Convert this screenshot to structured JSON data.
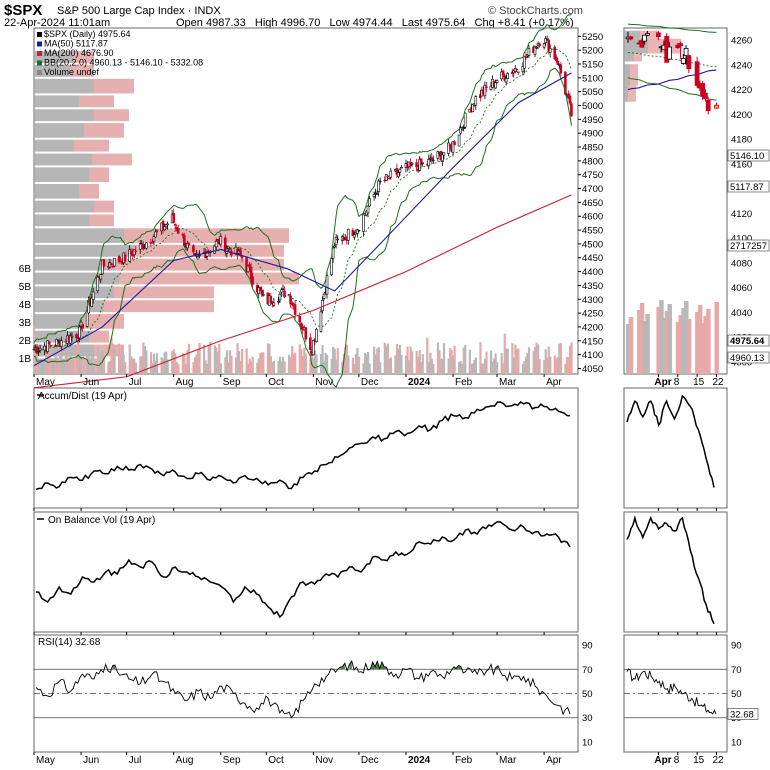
{
  "header": {
    "symbol": "$SPX",
    "description": "S&P 500 Large Cap Index",
    "exchange": "INDX",
    "date_time": "22-Apr-2024 11:01am",
    "open_label": "Open",
    "open": "4987.33",
    "high_label": "High",
    "high": "4996.70",
    "low_label": "Low",
    "low": "4974.44",
    "last_label": "Last",
    "last": "4975.64",
    "chg_label": "Chg",
    "chg": "+8.41 (+0.17%)",
    "brand": "© StockCharts.com"
  },
  "colors": {
    "candle_up": "#000000",
    "candle_down": "#cc0022",
    "ma50": "#1a1aa0",
    "ma200": "#cc1f2f",
    "bb": "#1f6e1f",
    "volume_up": "#b8b8b8",
    "volume_down": "#e8a8a8",
    "vbp_up": "#a9a9a9",
    "vbp_down": "#e3a2a2",
    "rsi_fill": "#4f7a4f",
    "accent": "#e0c800"
  },
  "chart_data": [
    {
      "type": "candlestick",
      "legend": [
        {
          "name": "$SPX (Daily) 4975.64",
          "color": "#000000"
        },
        {
          "name": "MA(50) 5117.87",
          "color": "#1a1aa0"
        },
        {
          "name": "MA(200) 4676.90",
          "color": "#cc1f2f"
        },
        {
          "name": "BB(20,2.0) 4960.13 - 5146.10 - 5332.08",
          "color": "#1f6e1f"
        },
        {
          "name": "Volume undef",
          "color": "#888888"
        }
      ],
      "legend_position": "top-left",
      "ylim": [
        4030,
        5280
      ],
      "y_ticks": [
        4050,
        4100,
        4150,
        4200,
        4250,
        4300,
        4350,
        4400,
        4450,
        4500,
        4550,
        4600,
        4650,
        4700,
        4750,
        4800,
        4850,
        4900,
        4950,
        5000,
        5050,
        5100,
        5150,
        5200,
        5250
      ],
      "volume_ticks": [
        "1B",
        "2B",
        "3B",
        "4B",
        "5B",
        "6B"
      ],
      "x_ticks": [
        {
          "label": "May",
          "date": "2023-05-01"
        },
        {
          "label": "Jun",
          "date": "2023-06-01"
        },
        {
          "label": "Jul",
          "date": "2023-07-01"
        },
        {
          "label": "Aug",
          "date": "2023-08-01"
        },
        {
          "label": "Sep",
          "date": "2023-09-01"
        },
        {
          "label": "Oct",
          "date": "2023-10-01"
        },
        {
          "label": "Nov",
          "date": "2023-11-01"
        },
        {
          "label": "Dec",
          "date": "2023-12-01"
        },
        {
          "label": "2024",
          "date": "2024-01-01"
        },
        {
          "label": "Feb",
          "date": "2024-02-01"
        },
        {
          "label": "Mar",
          "date": "2024-03-01"
        },
        {
          "label": "Apr",
          "date": "2024-04-01"
        }
      ],
      "close_path": [
        {
          "date": "2023-05-01",
          "close": 4120
        },
        {
          "date": "2023-05-15",
          "close": 4140
        },
        {
          "date": "2023-05-31",
          "close": 4180
        },
        {
          "date": "2023-06-15",
          "close": 4420
        },
        {
          "date": "2023-06-30",
          "close": 4450
        },
        {
          "date": "2023-07-15",
          "close": 4510
        },
        {
          "date": "2023-07-31",
          "close": 4590
        },
        {
          "date": "2023-08-15",
          "close": 4440
        },
        {
          "date": "2023-08-31",
          "close": 4510
        },
        {
          "date": "2023-09-15",
          "close": 4450
        },
        {
          "date": "2023-09-30",
          "close": 4290
        },
        {
          "date": "2023-10-15",
          "close": 4330
        },
        {
          "date": "2023-10-31",
          "close": 4120
        },
        {
          "date": "2023-11-15",
          "close": 4500
        },
        {
          "date": "2023-11-30",
          "close": 4560
        },
        {
          "date": "2023-12-15",
          "close": 4720
        },
        {
          "date": "2023-12-31",
          "close": 4770
        },
        {
          "date": "2024-01-15",
          "close": 4790
        },
        {
          "date": "2024-01-31",
          "close": 4850
        },
        {
          "date": "2024-02-15",
          "close": 5020
        },
        {
          "date": "2024-02-29",
          "close": 5090
        },
        {
          "date": "2024-03-15",
          "close": 5140
        },
        {
          "date": "2024-03-31",
          "close": 5250
        },
        {
          "date": "2024-04-10",
          "close": 5160
        },
        {
          "date": "2024-04-19",
          "close": 4967
        }
      ],
      "ma200_path": [
        {
          "date": "2023-05-01",
          "value": 3980
        },
        {
          "date": "2023-07-01",
          "value": 4020
        },
        {
          "date": "2023-09-01",
          "value": 4150
        },
        {
          "date": "2023-11-01",
          "value": 4260
        },
        {
          "date": "2024-01-01",
          "value": 4400
        },
        {
          "date": "2024-03-01",
          "value": 4560
        },
        {
          "date": "2024-04-19",
          "value": 4677
        }
      ],
      "ma50_path": [
        {
          "date": "2023-05-01",
          "value": 4060
        },
        {
          "date": "2023-06-15",
          "value": 4200
        },
        {
          "date": "2023-08-01",
          "value": 4440
        },
        {
          "date": "2023-09-01",
          "value": 4480
        },
        {
          "date": "2023-10-15",
          "value": 4410
        },
        {
          "date": "2023-11-15",
          "value": 4330
        },
        {
          "date": "2023-12-15",
          "value": 4500
        },
        {
          "date": "2024-01-31",
          "value": 4770
        },
        {
          "date": "2024-03-15",
          "value": 5010
        },
        {
          "date": "2024-04-19",
          "value": 5118
        }
      ],
      "bb_upper": 5332.08,
      "bb_mid": 5146.1,
      "bb_lower": 4960.13
    },
    {
      "type": "candlestick",
      "title": "",
      "period": "April 2024 zoom",
      "ylim": [
        3985,
        5275
      ],
      "y_ticks": [
        4000,
        4020,
        4040,
        4060,
        4080,
        4100,
        4120,
        4140,
        4160,
        4180,
        4200,
        4220,
        4240,
        4260
      ],
      "extra_labels": [
        "5146.10",
        "5117.87",
        "2717257",
        "4975.64",
        "4960.13"
      ],
      "x_ticks": [
        {
          "label": "Apr",
          "date": "2024-04-01"
        },
        {
          "label": "8",
          "date": "2024-04-08"
        },
        {
          "label": "15",
          "date": "2024-04-15"
        },
        {
          "label": "22",
          "date": "2024-04-22"
        }
      ],
      "candles": [
        {
          "date": "2024-03-21",
          "o": 5235,
          "h": 5261,
          "l": 5220,
          "c": 5241
        },
        {
          "date": "2024-03-22",
          "o": 5242,
          "h": 5246,
          "l": 5229,
          "c": 5234
        },
        {
          "date": "2024-03-25",
          "o": 5219,
          "h": 5229,
          "l": 5216,
          "c": 5218
        },
        {
          "date": "2024-03-26",
          "o": 5228,
          "h": 5235,
          "l": 5203,
          "c": 5203
        },
        {
          "date": "2024-03-27",
          "o": 5226,
          "h": 5249,
          "l": 5213,
          "c": 5248
        },
        {
          "date": "2024-03-28",
          "o": 5248,
          "h": 5264,
          "l": 5245,
          "c": 5254
        },
        {
          "date": "2024-04-01",
          "o": 5257,
          "h": 5263,
          "l": 5229,
          "c": 5243
        },
        {
          "date": "2024-04-02",
          "o": 5204,
          "h": 5208,
          "l": 5184,
          "c": 5205
        },
        {
          "date": "2024-04-03",
          "o": 5194,
          "h": 5228,
          "l": 5194,
          "c": 5211
        },
        {
          "date": "2024-04-04",
          "o": 5244,
          "h": 5256,
          "l": 5146,
          "c": 5147
        },
        {
          "date": "2024-04-05",
          "o": 5159,
          "h": 5222,
          "l": 5157,
          "c": 5204
        },
        {
          "date": "2024-04-08",
          "o": 5211,
          "h": 5219,
          "l": 5197,
          "c": 5202
        },
        {
          "date": "2024-04-09",
          "o": 5217,
          "h": 5224,
          "l": 5160,
          "c": 5209
        },
        {
          "date": "2024-04-10",
          "o": 5143,
          "h": 5178,
          "l": 5138,
          "c": 5161
        },
        {
          "date": "2024-04-11",
          "o": 5172,
          "h": 5211,
          "l": 5138,
          "c": 5199
        },
        {
          "date": "2024-04-12",
          "o": 5172,
          "h": 5175,
          "l": 5107,
          "c": 5123
        },
        {
          "date": "2024-04-15",
          "o": 5149,
          "h": 5168,
          "l": 5052,
          "c": 5061
        },
        {
          "date": "2024-04-16",
          "o": 5064,
          "h": 5079,
          "l": 5039,
          "c": 5051
        },
        {
          "date": "2024-04-17",
          "o": 5068,
          "h": 5077,
          "l": 5007,
          "c": 5022
        },
        {
          "date": "2024-04-18",
          "o": 5032,
          "h": 5047,
          "l": 5001,
          "c": 5011
        },
        {
          "date": "2024-04-19",
          "o": 5005,
          "h": 5019,
          "l": 4953,
          "c": 4967
        },
        {
          "date": "2024-04-22",
          "o": 4987,
          "h": 4997,
          "l": 4974,
          "c": 4976
        }
      ]
    },
    {
      "type": "line",
      "legend": [
        {
          "name": "Accum/Dist (19 Apr)",
          "color": "#000000"
        }
      ],
      "series": [
        {
          "name": "Accum/Dist",
          "values": [
            0.05,
            0.12,
            0.08,
            0.18,
            0.15,
            0.25,
            0.22,
            0.3,
            0.26,
            0.32,
            0.27,
            0.2,
            0.24,
            0.17,
            0.22,
            0.15,
            0.19,
            0.12,
            0.2,
            0.17,
            0.1,
            0.15,
            0.06,
            0.18,
            0.25,
            0.32,
            0.4,
            0.5,
            0.55,
            0.62,
            0.6,
            0.68,
            0.66,
            0.74,
            0.7,
            0.8,
            0.85,
            0.83,
            0.92,
            0.95,
            1.0,
            0.96,
            0.98,
            0.94,
            0.95,
            0.9,
            0.85
          ]
        }
      ],
      "zoom_series": [
        {
          "name": "Accum/Dist",
          "values": [
            0.75,
            0.95,
            0.8,
            0.95,
            0.72,
            0.95,
            0.78,
            1.0,
            0.9,
            0.68,
            0.4,
            0.12
          ]
        }
      ]
    },
    {
      "type": "line",
      "legend": [
        {
          "name": "On Balance Vol (19 Apr)",
          "color": "#000000"
        }
      ],
      "series": [
        {
          "name": "On Balance Vol",
          "values": [
            0.3,
            0.2,
            0.35,
            0.28,
            0.45,
            0.4,
            0.5,
            0.48,
            0.62,
            0.55,
            0.6,
            0.45,
            0.55,
            0.5,
            0.45,
            0.4,
            0.35,
            0.2,
            0.35,
            0.28,
            0.15,
            0.05,
            0.25,
            0.4,
            0.38,
            0.48,
            0.45,
            0.55,
            0.5,
            0.65,
            0.62,
            0.7,
            0.68,
            0.8,
            0.78,
            0.85,
            0.82,
            0.92,
            0.88,
            0.97,
            1.0,
            0.92,
            0.95,
            0.9,
            0.88,
            0.85,
            0.75
          ]
        }
      ],
      "zoom_series": [
        {
          "name": "On Balance Vol",
          "values": [
            0.8,
            1.0,
            0.82,
            1.0,
            0.9,
            0.95,
            0.88,
            1.0,
            0.7,
            0.45,
            0.2,
            0.02
          ]
        }
      ]
    },
    {
      "type": "line",
      "legend": [
        {
          "name": "RSI(14) 32.68",
          "color": "#000000"
        }
      ],
      "ylim": [
        0,
        100
      ],
      "y_ticks": [
        10,
        30,
        50,
        70,
        90
      ],
      "reference_lines": [
        30,
        50,
        70
      ],
      "last_value": "32.68",
      "series": [
        {
          "name": "RSI",
          "values": [
            55,
            48,
            60,
            52,
            66,
            62,
            74,
            68,
            62,
            58,
            66,
            60,
            50,
            44,
            52,
            46,
            56,
            50,
            42,
            38,
            46,
            34,
            30,
            44,
            58,
            64,
            70,
            74,
            68,
            76,
            72,
            66,
            70,
            62,
            68,
            64,
            72,
            68,
            66,
            70,
            68,
            62,
            64,
            56,
            48,
            40,
            33
          ]
        }
      ],
      "zoom_series": [
        {
          "name": "RSI",
          "values": [
            68,
            62,
            68,
            64,
            60,
            54,
            55,
            50,
            46,
            40,
            36,
            33
          ]
        }
      ]
    }
  ]
}
